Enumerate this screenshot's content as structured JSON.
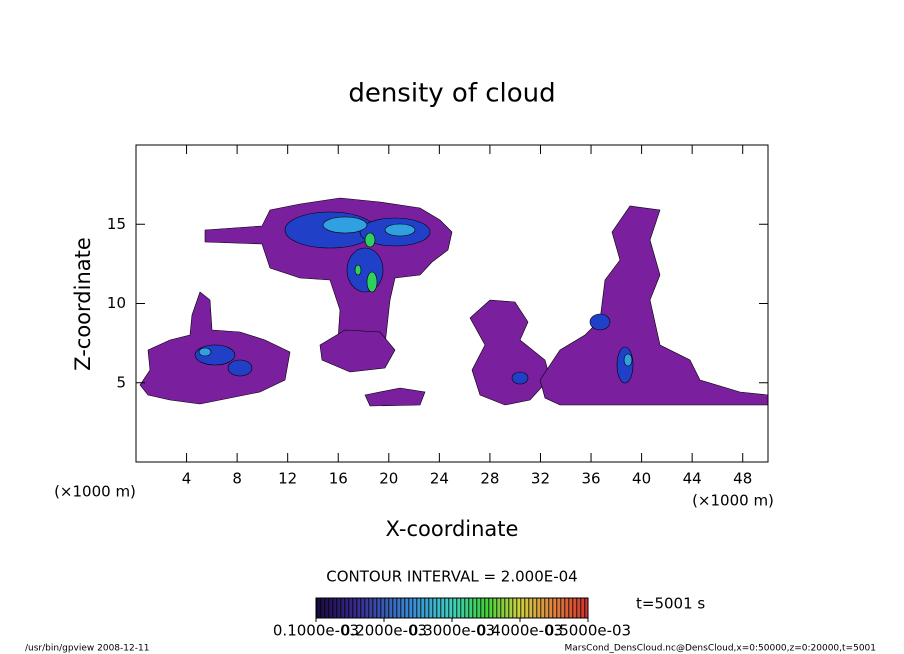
{
  "chart_data": {
    "type": "contour",
    "title": "density of cloud",
    "x_label": "X-coordinate",
    "y_label": "Z-coordinate",
    "x_unit_left": "(×1000 m)",
    "x_unit_right": "(×1000 m)",
    "xlim": [
      0,
      50
    ],
    "ylim": [
      0,
      20
    ],
    "xticks": [
      4,
      8,
      12,
      16,
      20,
      24,
      28,
      32,
      36,
      40,
      44,
      48
    ],
    "yticks": [
      5,
      10,
      15
    ],
    "contour_interval": "CONTOUR INTERVAL = 2.000E-04",
    "time_label": "t=5001 s",
    "colorbar_lim": [
      0.0001,
      0.0005
    ],
    "colorbar_ticks": [
      {
        "value": 0.0001,
        "label": "0.1000e-03"
      },
      {
        "value": 0.0002,
        "label": "0.2000e-03"
      },
      {
        "value": 0.0003,
        "label": "0.3000e-03"
      },
      {
        "value": 0.0004,
        "label": "0.4000e-03"
      },
      {
        "value": 0.0005,
        "label": "0.5000e-03"
      }
    ],
    "footer_left": "/usr/bin/gpview   2008-12-11",
    "footer_right": "MarsCond_DensCloud.nc@DensCloud,x=0:50000,z=0:20000,t=5001"
  }
}
